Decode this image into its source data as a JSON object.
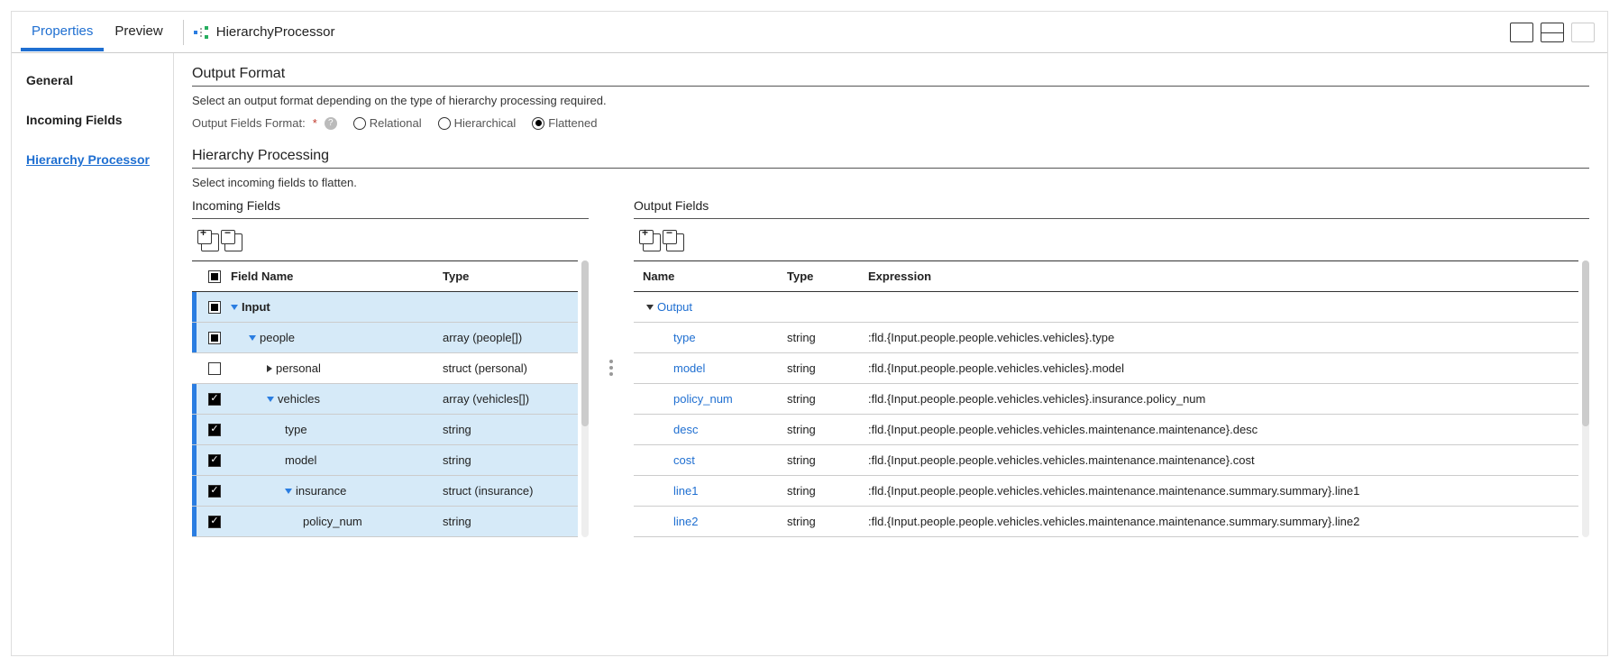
{
  "tabs": {
    "properties": "Properties",
    "preview": "Preview"
  },
  "processor": {
    "label": "HierarchyProcessor"
  },
  "sidebar": {
    "general": "General",
    "incoming_fields": "Incoming Fields",
    "hierarchy_processor": "Hierarchy Processor"
  },
  "output_format": {
    "title": "Output Format",
    "subtitle": "Select an output format depending on the type of hierarchy processing required.",
    "label": "Output Fields Format:",
    "options": {
      "relational": "Relational",
      "hierarchical": "Hierarchical",
      "flattened": "Flattened"
    },
    "selected": "flattened"
  },
  "hierarchy_processing": {
    "title": "Hierarchy Processing",
    "subtitle": "Select incoming fields to flatten."
  },
  "incoming": {
    "title": "Incoming Fields",
    "cols": {
      "field_name": "Field Name",
      "type": "Type"
    },
    "rows": [
      {
        "indent": 0,
        "check": "indet",
        "arrow": "open",
        "name": "Input",
        "type": "",
        "selected": true,
        "bold": true
      },
      {
        "indent": 1,
        "check": "indet",
        "arrow": "open",
        "name": "people",
        "type": "array (people[])",
        "selected": true
      },
      {
        "indent": 2,
        "check": "empty",
        "arrow": "closed",
        "name": "personal",
        "type": "struct (personal)",
        "selected": false
      },
      {
        "indent": 2,
        "check": "checked",
        "arrow": "open",
        "name": "vehicles",
        "type": "array (vehicles[])",
        "selected": true
      },
      {
        "indent": 3,
        "check": "checked",
        "arrow": "",
        "name": "type",
        "type": "string",
        "selected": true
      },
      {
        "indent": 3,
        "check": "checked",
        "arrow": "",
        "name": "model",
        "type": "string",
        "selected": true
      },
      {
        "indent": 3,
        "check": "checked",
        "arrow": "open",
        "name": "insurance",
        "type": "struct (insurance)",
        "selected": true
      },
      {
        "indent": 4,
        "check": "checked",
        "arrow": "",
        "name": "policy_num",
        "type": "string",
        "selected": true
      }
    ]
  },
  "output": {
    "title": "Output Fields",
    "cols": {
      "name": "Name",
      "type": "Type",
      "expression": "Expression"
    },
    "root": "Output",
    "rows": [
      {
        "name": "type",
        "type": "string",
        "expr": ":fld.{Input.people.people.vehicles.vehicles}.type"
      },
      {
        "name": "model",
        "type": "string",
        "expr": ":fld.{Input.people.people.vehicles.vehicles}.model"
      },
      {
        "name": "policy_num",
        "type": "string",
        "expr": ":fld.{Input.people.people.vehicles.vehicles}.insurance.policy_num"
      },
      {
        "name": "desc",
        "type": "string",
        "expr": ":fld.{Input.people.people.vehicles.vehicles.maintenance.maintenance}.desc"
      },
      {
        "name": "cost",
        "type": "string",
        "expr": ":fld.{Input.people.people.vehicles.vehicles.maintenance.maintenance}.cost"
      },
      {
        "name": "line1",
        "type": "string",
        "expr": ":fld.{Input.people.people.vehicles.vehicles.maintenance.maintenance.summary.summary}.line1"
      },
      {
        "name": "line2",
        "type": "string",
        "expr": ":fld.{Input.people.people.vehicles.vehicles.maintenance.maintenance.summary.summary}.line2"
      }
    ]
  },
  "colors": {
    "accent": "#1f6fd1",
    "row_selected_bg": "#d6eaf8",
    "row_strip": "#2a7de1"
  }
}
